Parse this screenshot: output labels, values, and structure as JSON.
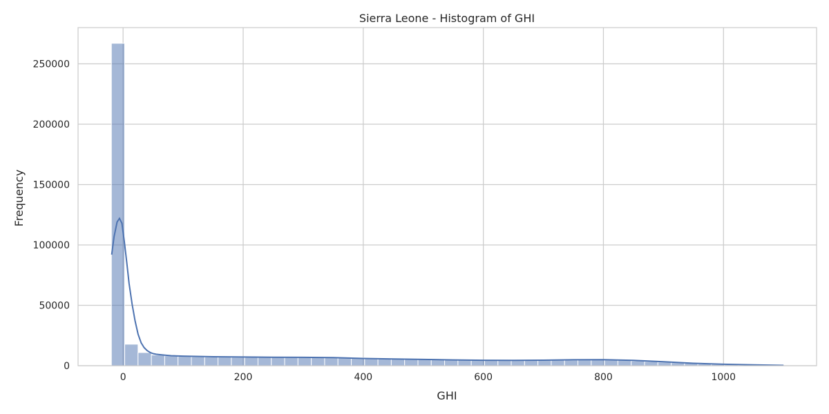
{
  "chart_data": {
    "type": "bar",
    "title": "Sierra Leone - Histogram of GHI",
    "xlabel": "GHI",
    "ylabel": "Frequency",
    "xlim": [
      -75,
      1155
    ],
    "ylim": [
      0,
      280000
    ],
    "x_ticks": [
      0,
      200,
      400,
      600,
      800,
      1000
    ],
    "y_ticks": [
      0,
      50000,
      100000,
      150000,
      200000,
      250000
    ],
    "grid": true,
    "colors": {
      "bar": "#4c72b0",
      "line": "#4c72b0",
      "grid": "#cccccc",
      "axes": "#cccccc"
    },
    "bins": {
      "edges": [
        -19.5,
        2.7,
        24.9,
        47.1,
        69.3,
        91.5,
        113.7,
        135.9,
        158.1,
        180.3,
        202.5,
        224.7,
        246.9,
        269.1,
        291.3,
        313.5,
        335.7,
        357.9,
        380.1,
        402.3,
        424.5,
        446.7,
        468.9,
        491.1,
        513.3,
        535.5,
        557.7,
        579.9,
        602.1,
        624.3,
        646.5,
        668.7,
        690.9,
        713.1,
        735.3,
        757.5,
        779.7,
        801.9,
        824.1,
        846.3,
        868.5,
        890.7,
        912.9,
        935.1,
        957.3,
        979.5,
        1001.7,
        1023.9,
        1046.1,
        1068.3,
        1090.5
      ],
      "counts": [
        267000,
        17800,
        10900,
        8900,
        8200,
        7700,
        7400,
        7200,
        7100,
        7000,
        7000,
        6900,
        6900,
        6800,
        6800,
        6700,
        6700,
        6600,
        6500,
        6300,
        6000,
        5700,
        5400,
        5200,
        5000,
        4800,
        4700,
        4600,
        4500,
        4500,
        4400,
        4400,
        4500,
        4600,
        4700,
        4800,
        4900,
        4800,
        4500,
        4000,
        3500,
        3000,
        2500,
        2000,
        1500,
        1100,
        800,
        500,
        300,
        150
      ]
    },
    "kde": {
      "x": [
        -19,
        -15,
        -10,
        -6,
        -2,
        2,
        6,
        10,
        15,
        20,
        25,
        30,
        35,
        40,
        45,
        50,
        55,
        60,
        70,
        80,
        100,
        150,
        200,
        250,
        300,
        350,
        400,
        450,
        500,
        550,
        600,
        650,
        700,
        750,
        800,
        850,
        900,
        950,
        1000,
        1050,
        1100
      ],
      "y": [
        92000,
        107000,
        119000,
        122000,
        118000,
        103000,
        86000,
        68000,
        51000,
        37000,
        26000,
        19000,
        15000,
        12500,
        11000,
        10000,
        9500,
        9200,
        8700,
        8300,
        7900,
        7400,
        7200,
        7000,
        6900,
        6700,
        6000,
        5600,
        5200,
        4800,
        4500,
        4400,
        4600,
        4900,
        5000,
        4400,
        3300,
        2000,
        1200,
        700,
        300
      ]
    }
  }
}
